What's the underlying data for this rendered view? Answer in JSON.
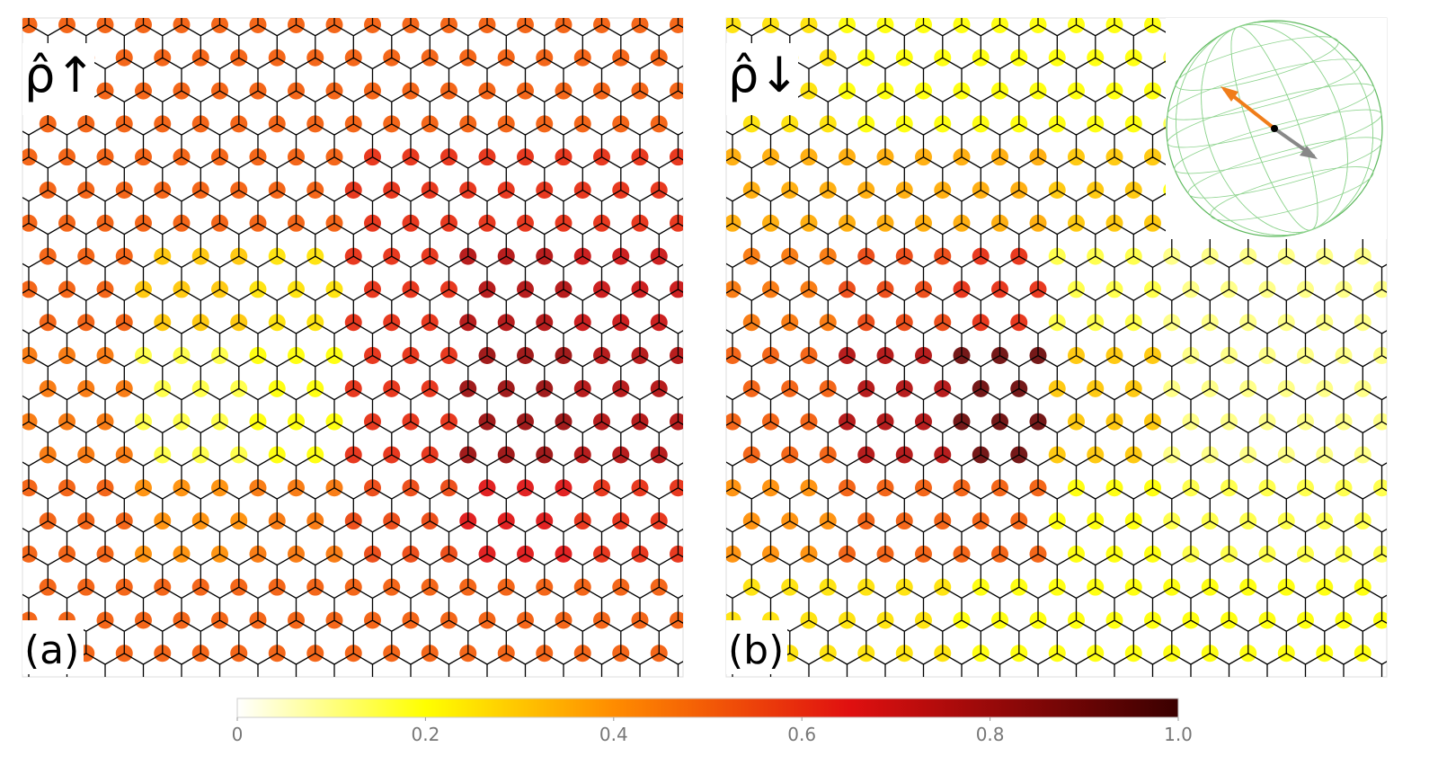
{
  "chart_data": {
    "type": "lattice",
    "panels": [
      {
        "title": "ρ̂↑",
        "label": "(a)",
        "density": [
          [
            0.5,
            0.5,
            0.5,
            0.5,
            0.5,
            0.5
          ],
          [
            0.5,
            0.5,
            0.5,
            0.6,
            0.6,
            0.6
          ],
          [
            0.5,
            0.3,
            0.25,
            0.6,
            0.75,
            0.7
          ],
          [
            0.45,
            0.15,
            0.2,
            0.6,
            0.8,
            0.75
          ],
          [
            0.5,
            0.4,
            0.45,
            0.55,
            0.65,
            0.6
          ],
          [
            0.5,
            0.5,
            0.5,
            0.5,
            0.5,
            0.5
          ]
        ]
      },
      {
        "title": "ρ̂↓",
        "label": "(b)",
        "density": [
          [
            0.25,
            0.2,
            0.2,
            0.2,
            0.15,
            0.15
          ],
          [
            0.35,
            0.35,
            0.35,
            0.3,
            0.2,
            0.15
          ],
          [
            0.45,
            0.55,
            0.6,
            0.15,
            0.1,
            0.1
          ],
          [
            0.5,
            0.75,
            0.9,
            0.3,
            0.1,
            0.1
          ],
          [
            0.4,
            0.5,
            0.5,
            0.2,
            0.15,
            0.15
          ],
          [
            0.25,
            0.25,
            0.2,
            0.2,
            0.2,
            0.2
          ]
        ]
      }
    ],
    "colorbar": {
      "clim": [
        0,
        1
      ],
      "ticks": [
        0,
        0.2,
        0.4,
        0.6,
        0.8,
        {
          "value": 1,
          "label": "1.0"
        }
      ],
      "colorscale": [
        [
          0,
          "#ffffff"
        ],
        [
          0.2,
          "#ffff00"
        ],
        [
          0.4,
          "#ff8c00"
        ],
        [
          0.65,
          "#e01010"
        ],
        [
          1,
          "#3a0000"
        ]
      ]
    }
  }
}
